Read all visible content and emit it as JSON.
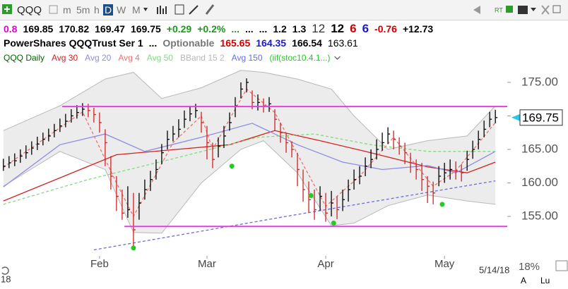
{
  "toolbar": {
    "symbol": "QQQ",
    "timeframes": [
      "m",
      "5m",
      "h",
      "D",
      "W",
      "M"
    ]
  },
  "quote": [
    {
      "text": "0.8",
      "color": "#e000e0"
    },
    {
      "text": "169.85",
      "color": "#000"
    },
    {
      "text": "170.82",
      "color": "#000"
    },
    {
      "text": "169.47",
      "color": "#000"
    },
    {
      "text": "169.75",
      "color": "#000"
    },
    {
      "text": "+0.29",
      "color": "#1a9a1a"
    },
    {
      "text": "+0.2%",
      "color": "#1a9a1a"
    },
    {
      "text": "...",
      "color": "#1a9a1a"
    },
    {
      "text": "...",
      "color": "#000"
    },
    {
      "text": "...",
      "color": "#000"
    },
    {
      "text": "1.2",
      "color": "#000"
    },
    {
      "text": "1.3",
      "color": "#000"
    },
    {
      "text": "12",
      "color": "#333",
      "weight": "normal",
      "size": 17
    },
    {
      "text": "12",
      "color": "#000",
      "size": 17
    },
    {
      "text": "6",
      "color": "#d00000",
      "size": 17
    },
    {
      "text": "6",
      "color": "#1a1ad0",
      "size": 17
    },
    {
      "text": "-0.76",
      "color": "#d00000"
    },
    {
      "text": "+12.73",
      "color": "#000"
    }
  ],
  "info": [
    {
      "text": "PowerShares QQQTrust Ser 1",
      "color": "#000"
    },
    {
      "text": "...",
      "color": "#000"
    },
    {
      "text": "Optionable",
      "color": "#777"
    },
    {
      "text": "165.65",
      "color": "#d00000"
    },
    {
      "text": "164.35",
      "color": "#1a1ad0"
    },
    {
      "text": "166.54",
      "color": "#000"
    },
    {
      "text": "163.61",
      "color": "#000",
      "weight": "normal"
    }
  ],
  "chart_data": {
    "type": "ohlc",
    "xlim": [
      -0.6,
      89.1
    ],
    "ylim": [
      148.9,
      177.3
    ],
    "yticks": [
      {
        "value": 155,
        "label": "155.00"
      },
      {
        "value": 160,
        "label": "160.00"
      },
      {
        "value": 165,
        "label": "165.00"
      },
      {
        "value": 170,
        "label": "170.00"
      },
      {
        "value": 175,
        "label": "175.00"
      }
    ],
    "xticks": [
      {
        "value": 17,
        "label": "Feb"
      },
      {
        "value": 36,
        "label": "Mar"
      },
      {
        "value": 57,
        "label": "Apr"
      },
      {
        "value": 78,
        "label": "May"
      }
    ],
    "last": 169.75,
    "last_color": "#29c5e6",
    "hlines": [
      {
        "y": 171.4,
        "x": [
          10.4,
          89.1
        ]
      },
      {
        "y": 153.5,
        "x": [
          21.4,
          89.1
        ]
      }
    ],
    "hline_color": "#e040e0",
    "series": [
      {
        "name": "QQQ Daily",
        "color": "#006400",
        "kind": "ohlc",
        "values": [
          162.5,
          163,
          163.3,
          164,
          164.5,
          165.2,
          165.8,
          166.5,
          167,
          167.8,
          168.5,
          169.2,
          170,
          170.5,
          171,
          170.8,
          170.2,
          169,
          166,
          161,
          158,
          155.5,
          156,
          153,
          157,
          159,
          160.5,
          162,
          164.5,
          166.5,
          167.3,
          168,
          169.5,
          170.3,
          170.8,
          169,
          166,
          163.5,
          165.5,
          167,
          169,
          171.5,
          174,
          175,
          172,
          172,
          171.5,
          171.8,
          169.5,
          167.5,
          166,
          165,
          162,
          159,
          157.5,
          156,
          158,
          155.5,
          157,
          156,
          157.5,
          159,
          160.5,
          161,
          162.5,
          163.5,
          165,
          166,
          167.3,
          166.5,
          165.5,
          164.5,
          163,
          162,
          160.5,
          159.5,
          158.5,
          161,
          161.5,
          162,
          161.8,
          161.5,
          163.5,
          165,
          166.5,
          168,
          169.5,
          169.75
        ],
        "high": [
          163.6,
          164,
          164.4,
          165,
          165.6,
          166.2,
          166.9,
          167.5,
          168.1,
          168.8,
          169.6,
          170.3,
          171,
          171.6,
          171.9,
          171.8,
          171.2,
          170.5,
          168,
          164,
          161,
          159,
          159.5,
          158.5,
          158.5,
          160.5,
          161.8,
          163.5,
          165.8,
          167.8,
          168.5,
          169.5,
          170.8,
          171.5,
          171.8,
          170.6,
          168.5,
          166,
          166.8,
          168.5,
          170.5,
          172.8,
          175,
          175.6,
          173.8,
          173.2,
          172.6,
          172.8,
          171,
          169,
          167.5,
          166.2,
          164.5,
          162,
          160.2,
          159,
          159.5,
          158.5,
          158.8,
          158,
          159,
          160.5,
          162,
          162.5,
          163.8,
          165,
          166.5,
          167.5,
          168.3,
          167.8,
          166.8,
          166,
          164.5,
          163.5,
          163,
          161,
          160.2,
          162.5,
          163,
          163.5,
          163.2,
          162.8,
          164.8,
          166.3,
          167.8,
          169.3,
          170.6,
          170.9
        ],
        "low": [
          161.8,
          162.2,
          162.5,
          163,
          163.6,
          164.2,
          164.9,
          165.6,
          166.2,
          166.8,
          167.6,
          168.3,
          169,
          169.6,
          170,
          169.8,
          169,
          167.5,
          162.5,
          159,
          155.8,
          154.5,
          154.8,
          150.2,
          154.5,
          157.5,
          158.8,
          160.5,
          162.8,
          165,
          166.2,
          166.8,
          168.2,
          169.2,
          169.7,
          167.5,
          163.5,
          162.2,
          163.8,
          165.2,
          167.8,
          169.8,
          172.6,
          173.5,
          171,
          170.8,
          170.5,
          170.6,
          167.8,
          166,
          164.5,
          163.8,
          159.5,
          157.2,
          155.5,
          154.5,
          155.8,
          154.2,
          155,
          154.6,
          155.8,
          157.2,
          159,
          159.8,
          161,
          162.2,
          163.5,
          164.8,
          165.8,
          165,
          164.2,
          162.8,
          161.5,
          160.5,
          158.8,
          157,
          156.8,
          159.5,
          160,
          160.5,
          160.5,
          160.2,
          161.8,
          163.6,
          165,
          166.8,
          168.3,
          168.9
        ]
      },
      {
        "name": "Avg 30",
        "color": "#d42020",
        "kind": "line",
        "x": [
          0,
          20,
          40,
          48,
          56,
          64,
          75,
          82,
          87
        ],
        "values": [
          157.3,
          164.2,
          165.7,
          167.8,
          166.3,
          164.7,
          162.4,
          161.5,
          163.1
        ]
      },
      {
        "name": "Avg 20",
        "color": "#8c8ce6",
        "kind": "line",
        "x": [
          0,
          10,
          18,
          25,
          35,
          44,
          52,
          60,
          67,
          75,
          80,
          87
        ],
        "values": [
          159.4,
          165.7,
          167.3,
          164.7,
          166.8,
          168.9,
          165.7,
          163.1,
          162,
          162.6,
          161.5,
          164.7
        ]
      },
      {
        "name": "Avg 4",
        "color": "#f07070",
        "kind": "dashed",
        "x": [
          0,
          14,
          20,
          23,
          30,
          35,
          37,
          43,
          48,
          57,
          63,
          69,
          76,
          80,
          87
        ],
        "values": [
          162.3,
          170.6,
          160,
          155,
          166,
          170,
          165,
          174,
          170.5,
          156.5,
          161,
          166.8,
          159.5,
          161.8,
          169
        ]
      },
      {
        "name": "Avg 50",
        "color": "#7ddc7d",
        "kind": "dashed",
        "x": [
          0,
          15,
          30,
          45,
          55,
          65,
          75,
          87
        ],
        "values": [
          156.8,
          160.5,
          163.6,
          166.8,
          167.3,
          165.7,
          164.7,
          164.7
        ]
      },
      {
        "name": "BBand 15 2",
        "color": "#b8b8b8",
        "kind": "band",
        "x": [
          0,
          10,
          18,
          23,
          28,
          35,
          42,
          46,
          52,
          58,
          62,
          68,
          75,
          82,
          87
        ],
        "upper": [
          167.8,
          171.5,
          175.5,
          176.5,
          172.6,
          174.2,
          176.8,
          176.5,
          175.5,
          174,
          170,
          165,
          166.3,
          167,
          171.5
        ],
        "lower": [
          159.5,
          164.7,
          162,
          152.6,
          152.5,
          160,
          165,
          166.3,
          161.5,
          153.6,
          154,
          156.6,
          158.2,
          157.3,
          156.8
        ]
      },
      {
        "name": "Avg 150",
        "color": "#6a6ae0",
        "kind": "dashed",
        "x": [
          16,
          50,
          87
        ],
        "values": [
          150,
          155,
          160.3
        ]
      },
      {
        "name": "(iif(stoc10.4.1...)",
        "color": "#22cc22",
        "kind": "dots",
        "x": [
          23,
          40.4,
          54.4,
          58.4,
          77.6
        ],
        "values": [
          150.3,
          162.5,
          158.1,
          154,
          156.8
        ]
      }
    ]
  },
  "footer": {
    "date": "5/14/18",
    "percent": "18%",
    "left": "18",
    "a": "A",
    "lu": "Lu"
  }
}
